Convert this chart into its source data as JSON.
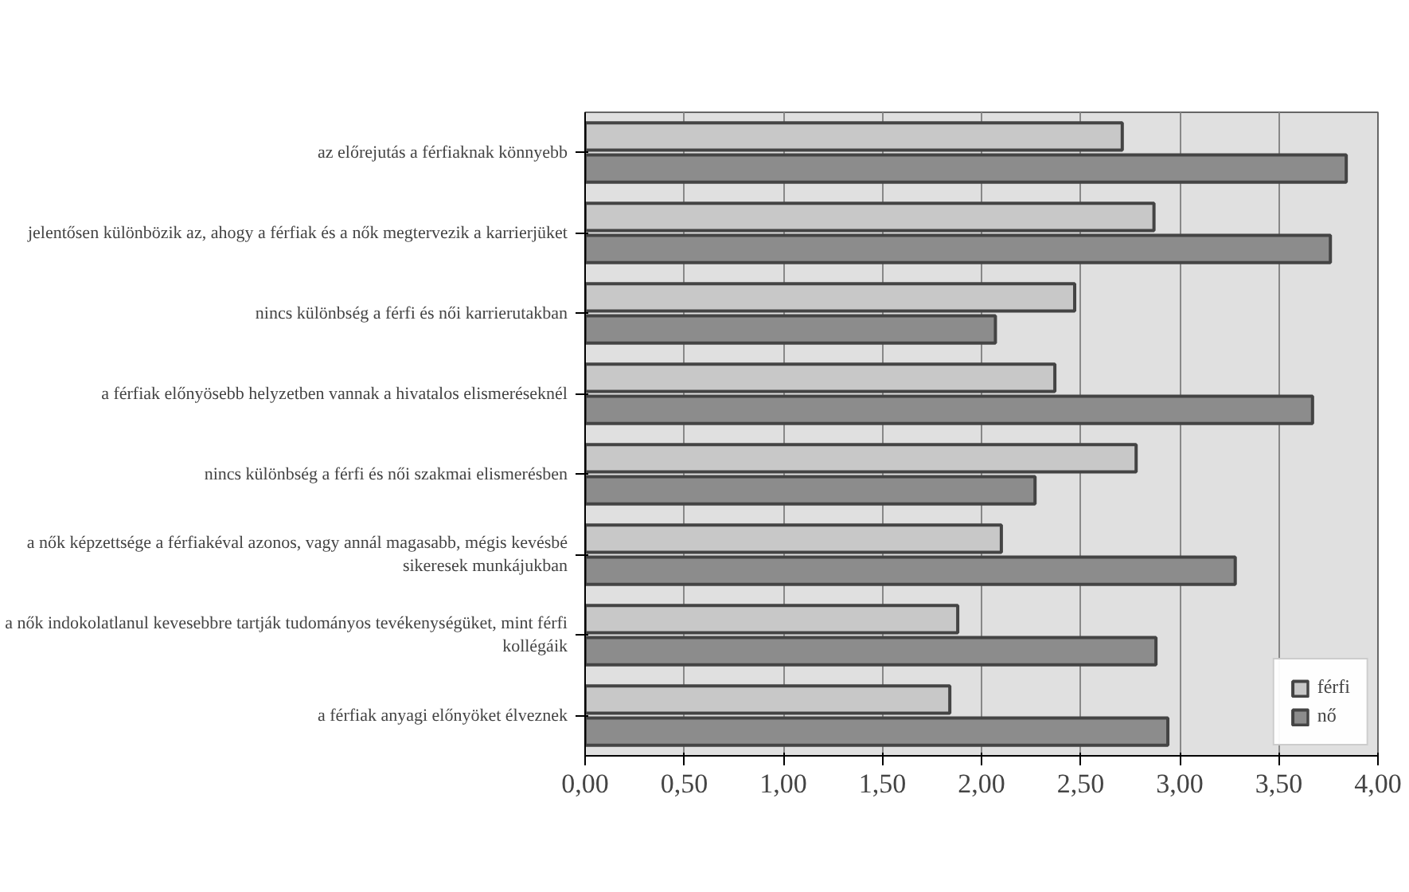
{
  "chart_data": {
    "type": "bar",
    "orientation": "horizontal",
    "categories": [
      "az előrejutás a férfiaknak könnyebb",
      "jelentősen különbözik az, ahogy a férfiak és a nők megtervezik a karrierjüket",
      "nincs különbség a férfi és női karrierutakban",
      "a férfiak előnyösebb helyzetben vannak a hivatalos elismeréseknél",
      "nincs különbség a férfi és női szakmai elismerésben",
      "a nők képzettsége a férfiakéval azonos, vagy annál magasabb, mégis kevésbé sikeresek munkájukban",
      "a nők indokolatlanul kevesebbre tartják tudományos tevékenységüket, mint férfi kollégáik",
      "a férfiak anyagi előnyöket élveznek"
    ],
    "series": [
      {
        "name": "férfi",
        "color": "#c8c8c8",
        "values": [
          2.71,
          2.87,
          2.47,
          2.37,
          2.78,
          2.1,
          1.88,
          1.84
        ]
      },
      {
        "name": "nő",
        "color": "#8c8c8c",
        "values": [
          3.84,
          3.76,
          2.07,
          3.67,
          2.27,
          3.28,
          2.88,
          2.94
        ]
      }
    ],
    "xlim": [
      0,
      4
    ],
    "xticks": [
      {
        "value": 0,
        "label": "0,00"
      },
      {
        "value": 0.5,
        "label": "0,50"
      },
      {
        "value": 1,
        "label": "1,00"
      },
      {
        "value": 1.5,
        "label": "1,50"
      },
      {
        "value": 2,
        "label": "2,00"
      },
      {
        "value": 2.5,
        "label": "2,50"
      },
      {
        "value": 3,
        "label": "3,00"
      },
      {
        "value": 3.5,
        "label": "3,50"
      },
      {
        "value": 4,
        "label": "4,00"
      }
    ],
    "grid": "x",
    "legend": "bottom right"
  }
}
